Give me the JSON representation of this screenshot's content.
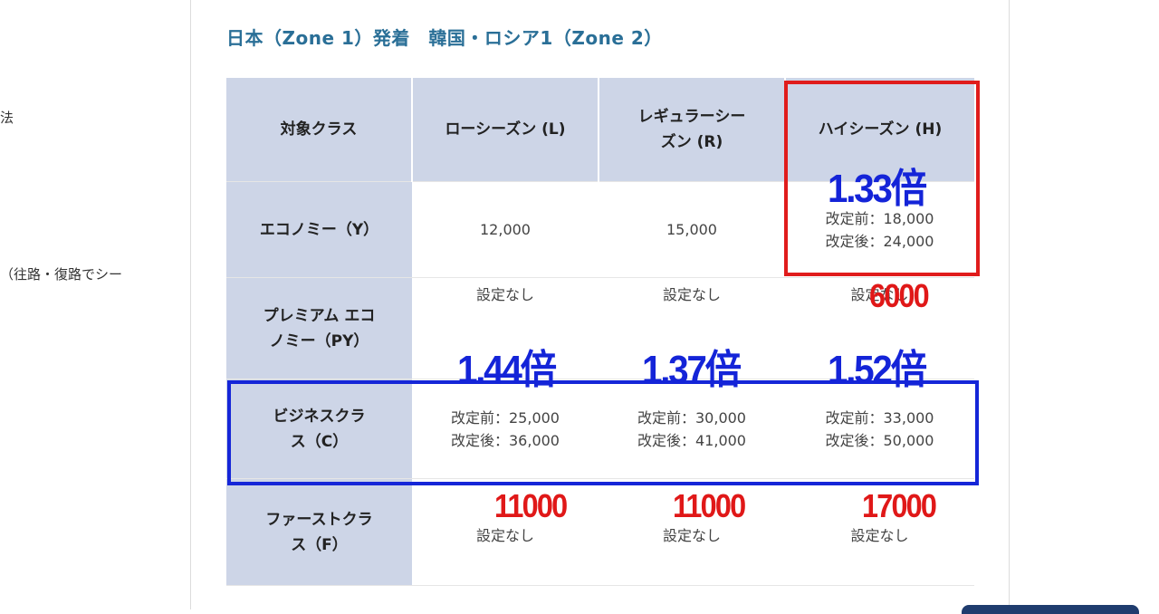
{
  "left_column": {
    "fragment_1": "法",
    "fragment_2": "（往路・復路でシー"
  },
  "section": {
    "title": "日本（Zone 1）発着　韓国・ロシア1（Zone 2）"
  },
  "fare_table": {
    "headers": [
      "対象クラス",
      "ローシーズン (L)",
      "レギュラーシーズン (R)",
      "ハイシーズン (H)"
    ],
    "rows": [
      {
        "class_name": "エコノミー（Y）",
        "low": "12,000",
        "regular": "15,000",
        "high_before": "改定前：18,000",
        "high_after": "改定後：24,000"
      },
      {
        "class_name": "プレミアム エコノミー（PY）",
        "low": "設定なし",
        "regular": "設定なし",
        "high": "設定なし"
      },
      {
        "class_name": "ビジネスクラス（C）",
        "low_before": "改定前：25,000",
        "low_after": "改定後：36,000",
        "regular_before": "改定前：30,000",
        "regular_after": "改定後：41,000",
        "high_before": "改定前：33,000",
        "high_after": "改定後：50,000"
      },
      {
        "class_name": "ファーストクラス（F）",
        "low": "設定なし",
        "regular": "設定なし",
        "high": "設定なし"
      }
    ]
  },
  "annotations": {
    "ratio_economy_high": "1.33倍",
    "diff_economy_high": "6000",
    "ratio_business_low": "1.44倍",
    "ratio_business_regular": "1.37倍",
    "ratio_business_high": "1.52倍",
    "diff_business_low": "11000",
    "diff_business_regular": "11000",
    "diff_business_high": "17000",
    "colors": {
      "red": "#e01818",
      "blue": "#1424d8",
      "header_bg": "#cdd5e7",
      "title": "#2a6f97"
    }
  }
}
